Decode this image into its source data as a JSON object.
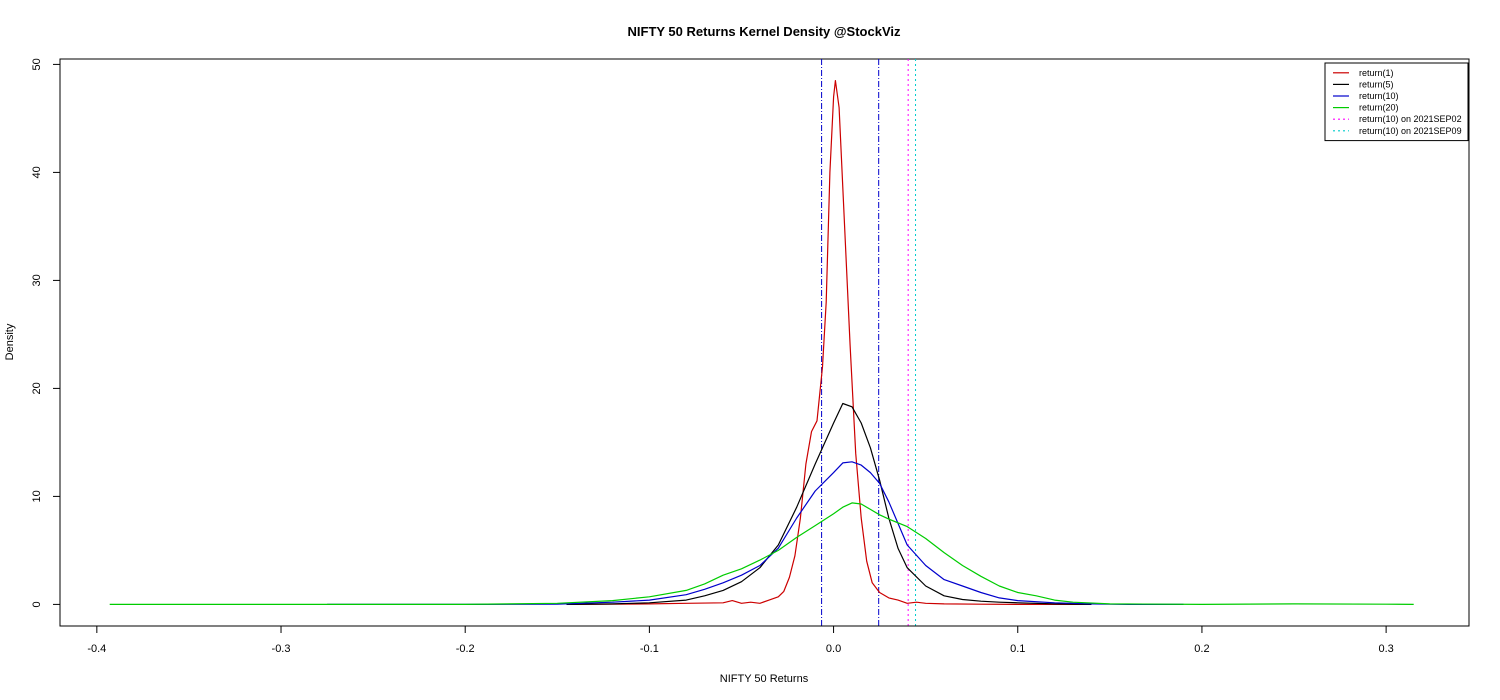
{
  "chart_data": {
    "type": "line",
    "title": "NIFTY 50 Returns Kernel Density @StockViz",
    "xlabel": "NIFTY 50 Returns",
    "ylabel": "Density",
    "xlim": [
      -0.42,
      0.345
    ],
    "ylim": [
      -2,
      50.5
    ],
    "xticks": [
      -0.4,
      -0.3,
      -0.2,
      -0.1,
      0.0,
      0.1,
      0.2,
      0.3
    ],
    "xtick_labels": [
      "-0.4",
      "-0.3",
      "-0.2",
      "-0.1",
      "0.0",
      "0.1",
      "0.2",
      "0.3"
    ],
    "yticks": [
      0,
      10,
      20,
      30,
      40,
      50
    ],
    "ytick_labels": [
      "0",
      "10",
      "20",
      "30",
      "40",
      "50"
    ],
    "grid": false,
    "legend_position": "top-right",
    "series": [
      {
        "name": "return(1)",
        "color": "#cc0000",
        "points": [
          [
            -0.145,
            0
          ],
          [
            -0.1,
            0.05
          ],
          [
            -0.08,
            0.1
          ],
          [
            -0.06,
            0.15
          ],
          [
            -0.055,
            0.35
          ],
          [
            -0.05,
            0.1
          ],
          [
            -0.045,
            0.2
          ],
          [
            -0.04,
            0.1
          ],
          [
            -0.035,
            0.4
          ],
          [
            -0.03,
            0.7
          ],
          [
            -0.027,
            1.2
          ],
          [
            -0.024,
            2.5
          ],
          [
            -0.021,
            4.5
          ],
          [
            -0.018,
            8
          ],
          [
            -0.015,
            13
          ],
          [
            -0.012,
            16
          ],
          [
            -0.009,
            17
          ],
          [
            -0.006,
            22
          ],
          [
            -0.004,
            28
          ],
          [
            -0.002,
            40
          ],
          [
            0.0,
            47
          ],
          [
            0.001,
            48.5
          ],
          [
            0.003,
            46
          ],
          [
            0.006,
            35
          ],
          [
            0.009,
            24
          ],
          [
            0.012,
            14
          ],
          [
            0.015,
            8
          ],
          [
            0.018,
            4
          ],
          [
            0.021,
            2
          ],
          [
            0.025,
            1.1
          ],
          [
            0.03,
            0.6
          ],
          [
            0.035,
            0.4
          ],
          [
            0.04,
            0.1
          ],
          [
            0.045,
            0.2
          ],
          [
            0.05,
            0.1
          ],
          [
            0.06,
            0.05
          ],
          [
            0.08,
            0.02
          ],
          [
            0.1,
            0
          ],
          [
            0.14,
            0
          ]
        ]
      },
      {
        "name": "return(5)",
        "color": "#000000",
        "points": [
          [
            -0.145,
            0
          ],
          [
            -0.12,
            0.05
          ],
          [
            -0.1,
            0.15
          ],
          [
            -0.08,
            0.4
          ],
          [
            -0.07,
            0.8
          ],
          [
            -0.06,
            1.3
          ],
          [
            -0.05,
            2.1
          ],
          [
            -0.04,
            3.4
          ],
          [
            -0.03,
            5.5
          ],
          [
            -0.02,
            9
          ],
          [
            -0.01,
            13
          ],
          [
            0.0,
            16.8
          ],
          [
            0.005,
            18.6
          ],
          [
            0.01,
            18.3
          ],
          [
            0.015,
            16.8
          ],
          [
            0.02,
            14.5
          ],
          [
            0.025,
            11.5
          ],
          [
            0.03,
            8
          ],
          [
            0.035,
            5.2
          ],
          [
            0.04,
            3.4
          ],
          [
            0.05,
            1.7
          ],
          [
            0.06,
            0.8
          ],
          [
            0.07,
            0.45
          ],
          [
            0.08,
            0.3
          ],
          [
            0.09,
            0.2
          ],
          [
            0.1,
            0.15
          ],
          [
            0.12,
            0.05
          ],
          [
            0.14,
            0
          ]
        ]
      },
      {
        "name": "return(10)",
        "color": "#0000cc",
        "points": [
          [
            -0.275,
            0
          ],
          [
            -0.25,
            0
          ],
          [
            -0.2,
            0
          ],
          [
            -0.15,
            0.03
          ],
          [
            -0.12,
            0.2
          ],
          [
            -0.1,
            0.4
          ],
          [
            -0.08,
            0.9
          ],
          [
            -0.07,
            1.4
          ],
          [
            -0.06,
            2.0
          ],
          [
            -0.05,
            2.7
          ],
          [
            -0.04,
            3.6
          ],
          [
            -0.03,
            5.2
          ],
          [
            -0.02,
            8
          ],
          [
            -0.01,
            10.5
          ],
          [
            0.0,
            12.2
          ],
          [
            0.005,
            13.1
          ],
          [
            0.01,
            13.2
          ],
          [
            0.015,
            12.9
          ],
          [
            0.02,
            12.2
          ],
          [
            0.025,
            11.2
          ],
          [
            0.03,
            9.5
          ],
          [
            0.035,
            7.5
          ],
          [
            0.04,
            5.5
          ],
          [
            0.05,
            3.6
          ],
          [
            0.06,
            2.3
          ],
          [
            0.07,
            1.7
          ],
          [
            0.08,
            1.1
          ],
          [
            0.09,
            0.6
          ],
          [
            0.1,
            0.35
          ],
          [
            0.12,
            0.15
          ],
          [
            0.14,
            0.05
          ],
          [
            0.16,
            0
          ],
          [
            0.19,
            0
          ]
        ]
      },
      {
        "name": "return(20)",
        "color": "#00cc00",
        "points": [
          [
            -0.393,
            0
          ],
          [
            -0.3,
            0
          ],
          [
            -0.2,
            0
          ],
          [
            -0.15,
            0.1
          ],
          [
            -0.12,
            0.35
          ],
          [
            -0.1,
            0.7
          ],
          [
            -0.08,
            1.3
          ],
          [
            -0.07,
            1.9
          ],
          [
            -0.06,
            2.7
          ],
          [
            -0.05,
            3.3
          ],
          [
            -0.04,
            4.1
          ],
          [
            -0.03,
            5.0
          ],
          [
            -0.02,
            6.2
          ],
          [
            -0.01,
            7.3
          ],
          [
            0.0,
            8.4
          ],
          [
            0.005,
            9.0
          ],
          [
            0.01,
            9.4
          ],
          [
            0.015,
            9.3
          ],
          [
            0.02,
            8.8
          ],
          [
            0.025,
            8.3
          ],
          [
            0.03,
            7.9
          ],
          [
            0.04,
            7.2
          ],
          [
            0.05,
            6.1
          ],
          [
            0.06,
            4.8
          ],
          [
            0.07,
            3.6
          ],
          [
            0.08,
            2.6
          ],
          [
            0.09,
            1.7
          ],
          [
            0.1,
            1.1
          ],
          [
            0.11,
            0.8
          ],
          [
            0.12,
            0.4
          ],
          [
            0.13,
            0.2
          ],
          [
            0.15,
            0.05
          ],
          [
            0.2,
            0
          ],
          [
            0.25,
            0.05
          ],
          [
            0.3,
            0.02
          ],
          [
            0.315,
            0
          ]
        ]
      }
    ],
    "vlines": [
      {
        "x": -0.0065,
        "color": "#0000cc",
        "style": "dotdash",
        "in_legend": false
      },
      {
        "x": 0.0245,
        "color": "#0000cc",
        "style": "dotdash",
        "in_legend": false
      },
      {
        "x": 0.0405,
        "color": "#ff00ff",
        "style": "dotted",
        "in_legend": true,
        "name": "return(10) on 2021SEP02"
      },
      {
        "x": 0.0445,
        "color": "#00cccc",
        "style": "dotted",
        "in_legend": true,
        "name": "return(10) on 2021SEP09"
      }
    ],
    "legend": [
      {
        "label": "return(1)",
        "color": "#cc0000",
        "style": "solid"
      },
      {
        "label": "return(5)",
        "color": "#000000",
        "style": "solid"
      },
      {
        "label": "return(10)",
        "color": "#0000cc",
        "style": "solid"
      },
      {
        "label": "return(20)",
        "color": "#00cc00",
        "style": "solid"
      },
      {
        "label": "return(10) on 2021SEP02",
        "color": "#ff00ff",
        "style": "dotted"
      },
      {
        "label": "return(10) on 2021SEP09",
        "color": "#00cccc",
        "style": "dotted"
      }
    ]
  }
}
